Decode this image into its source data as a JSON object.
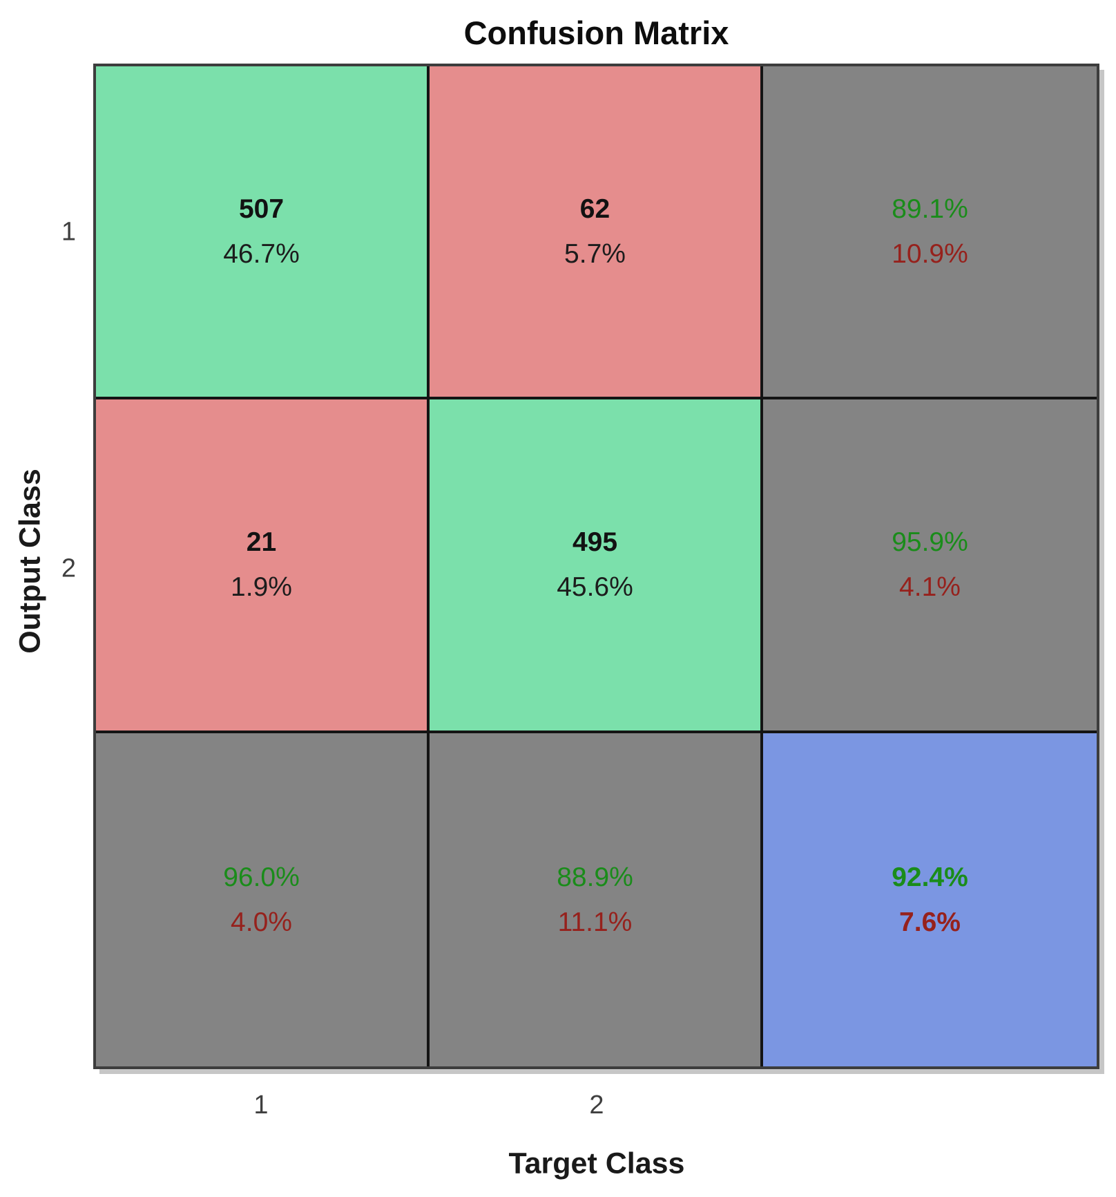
{
  "title": "Confusion Matrix",
  "xlabel": "Target Class",
  "ylabel": "Output Class",
  "xticks": [
    "1",
    "2"
  ],
  "yticks": [
    "1",
    "2"
  ],
  "colors": {
    "green": "#7be0ab",
    "red": "#e58d8d",
    "gray": "#848484",
    "blue": "#7b96e2",
    "txtgreen": "#1a8c1a",
    "txtred": "#96211c",
    "gridline": "#141414",
    "outerborder": "#3d3d3d"
  },
  "cells": [
    {
      "l1": "507",
      "l2": "46.7%"
    },
    {
      "l1": "62",
      "l2": "5.7%"
    },
    {
      "l1": "89.1%",
      "l2": "10.9%"
    },
    {
      "l1": "21",
      "l2": "1.9%"
    },
    {
      "l1": "495",
      "l2": "45.6%"
    },
    {
      "l1": "95.9%",
      "l2": "4.1%"
    },
    {
      "l1": "96.0%",
      "l2": "4.0%"
    },
    {
      "l1": "88.9%",
      "l2": "11.1%"
    },
    {
      "l1": "92.4%",
      "l2": "7.6%"
    }
  ],
  "chart_data": {
    "type": "heatmap",
    "title": "Confusion Matrix",
    "xlabel": "Target Class",
    "ylabel": "Output Class",
    "x_tick_labels": [
      "1",
      "2"
    ],
    "y_tick_labels": [
      "1",
      "2"
    ],
    "counts": [
      [
        507,
        62
      ],
      [
        21,
        495
      ]
    ],
    "count_percent_of_total": [
      [
        46.7,
        5.7
      ],
      [
        1.9,
        45.6
      ]
    ],
    "row_summary_percent": [
      [
        89.1,
        10.9
      ],
      [
        95.9,
        4.1
      ]
    ],
    "col_summary_percent": [
      [
        96.0,
        4.0
      ],
      [
        88.9,
        11.1
      ]
    ],
    "overall_percent": [
      92.4,
      7.6
    ],
    "cell_color_legend": {
      "correct_diagonal": "green",
      "incorrect_offdiagonal": "red",
      "summary_row_col": "gray",
      "overall_total": "blue"
    }
  }
}
